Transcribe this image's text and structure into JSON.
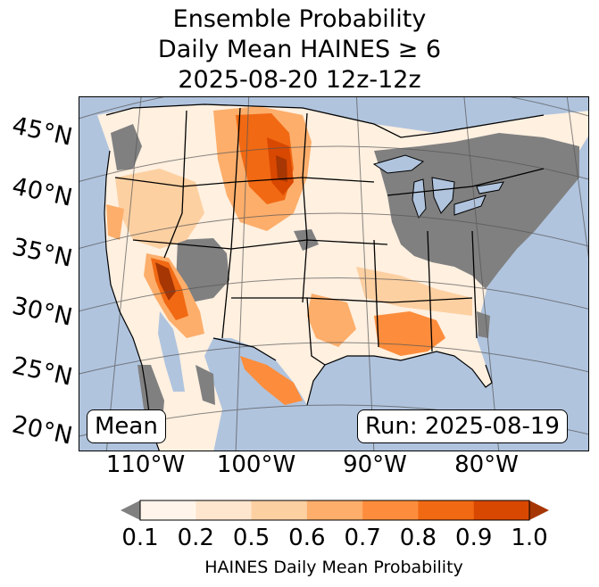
{
  "title": {
    "line1": "Ensemble Probability",
    "line2": "Daily Mean HAINES ≥ 6",
    "line3": "2025-08-20 12z-12z"
  },
  "map": {
    "latitude_labels": [
      "45°N",
      "40°N",
      "35°N",
      "30°N",
      "25°N",
      "20°N"
    ],
    "longitude_labels": [
      "110°W",
      "100°W",
      "90°W",
      "80°W"
    ],
    "stat_label": "Mean",
    "run_label": "Run: 2025-08-19"
  },
  "colorbar": {
    "ticks": [
      "0.1",
      "0.2",
      "0.5",
      "0.6",
      "0.7",
      "0.8",
      "0.9",
      "1.0"
    ],
    "label": "HAINES Daily Mean Probability",
    "colors": [
      "#fff5eb",
      "#fee6ce",
      "#fdd0a2",
      "#fdae6b",
      "#fd8d3c",
      "#f16913",
      "#d94801",
      "#a63603"
    ],
    "under_color": "#808080"
  },
  "colors": {
    "ocean": "#b0c4de",
    "no_data": "#808080"
  }
}
